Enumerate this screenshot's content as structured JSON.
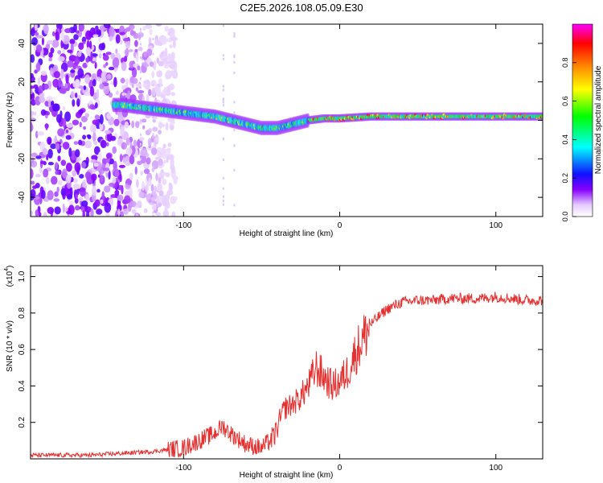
{
  "title": "C2E5.2026.108.05.09.E30",
  "chart_data": [
    {
      "type": "heatmap",
      "xlabel": "Height of straight line (km)",
      "ylabel": "Frequency (Hz)",
      "xlim": [
        -198,
        130
      ],
      "ylim": [
        -50,
        50
      ],
      "x_ticks": [
        -100,
        0,
        100
      ],
      "x_tick_labels": [
        "-100",
        "0",
        "100"
      ],
      "y_ticks": [
        -40,
        -20,
        0,
        20,
        40
      ],
      "y_tick_labels": [
        "-40",
        "-20",
        "0",
        "20",
        "40"
      ],
      "colorbar": {
        "label": "Normalized spectral amplitude",
        "range": [
          0,
          1
        ],
        "ticks": [
          0.0,
          0.2,
          0.4,
          0.6,
          0.8
        ],
        "tick_labels": [
          "0.0",
          "0.2",
          "0.4",
          "0.6",
          "0.8"
        ],
        "colors": [
          "#ffffff",
          "#8800ff",
          "#0000ff",
          "#00ffff",
          "#00ff00",
          "#ffff00",
          "#ff8800",
          "#ff0000",
          "#ff00ff"
        ]
      },
      "ridge": {
        "x": [
          -140,
          -120,
          -100,
          -80,
          -60,
          -50,
          -40,
          -30,
          -20,
          -10,
          0,
          20,
          40,
          60,
          80,
          100,
          130
        ],
        "frequency": [
          8,
          6,
          4,
          2,
          -2,
          -4,
          -4,
          -2,
          0,
          1,
          1,
          2,
          2,
          2,
          2,
          2,
          2
        ]
      },
      "noise_region": [
        -198,
        -115
      ]
    },
    {
      "type": "line",
      "xlabel": "Height of straight line (km)",
      "ylabel": "SNR (10 * v/v)",
      "y_scale_label": "(x10",
      "y_scale_exponent": "4",
      "xlim": [
        -198,
        130
      ],
      "ylim": [
        0,
        1.06
      ],
      "x_ticks": [
        -100,
        0,
        100
      ],
      "x_tick_labels": [
        "-100",
        "0",
        "100"
      ],
      "y_ticks": [
        0.2,
        0.4,
        0.6,
        0.8,
        1.0
      ],
      "y_tick_labels": [
        "0.2",
        "0.4",
        "0.6",
        "0.8",
        "1.0"
      ],
      "color": "#e53030",
      "series": [
        {
          "name": "SNR",
          "x": [
            -198,
            -180,
            -160,
            -140,
            -120,
            -100,
            -90,
            -80,
            -75,
            -70,
            -60,
            -50,
            -42,
            -38,
            -35,
            -30,
            -25,
            -20,
            -15,
            -10,
            -5,
            0,
            5,
            10,
            15,
            20,
            30,
            40,
            50,
            60,
            70,
            80,
            90,
            100,
            110,
            120,
            130
          ],
          "y": [
            0.02,
            0.02,
            0.02,
            0.03,
            0.04,
            0.06,
            0.1,
            0.14,
            0.18,
            0.14,
            0.08,
            0.06,
            0.12,
            0.22,
            0.28,
            0.3,
            0.34,
            0.4,
            0.5,
            0.45,
            0.4,
            0.42,
            0.48,
            0.58,
            0.66,
            0.74,
            0.82,
            0.86,
            0.87,
            0.87,
            0.88,
            0.88,
            0.88,
            0.89,
            0.88,
            0.87,
            0.87
          ]
        }
      ]
    }
  ]
}
